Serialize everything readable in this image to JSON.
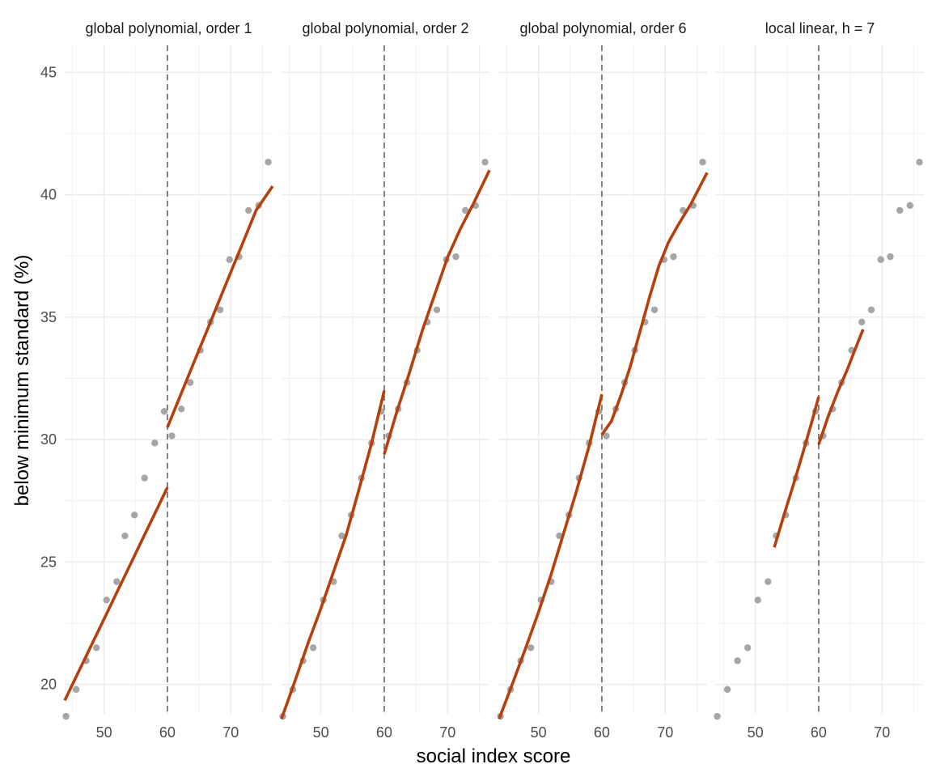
{
  "chart_data": {
    "type": "scatter",
    "ylabel": "below minimum standard (%)",
    "xlabel": "social index score",
    "xlim": [
      43.8,
      76.6
    ],
    "ylim": [
      18.8,
      46.1
    ],
    "x_ticks": [
      50,
      60,
      70
    ],
    "y_ticks": [
      20,
      25,
      30,
      35,
      40,
      45
    ],
    "cutoff": 60,
    "grid": true,
    "colors": {
      "points": "#a6a6a6",
      "fit": "#b5400d",
      "cutoff_line": "#666666",
      "grid": "#ebebeb"
    },
    "points": [
      {
        "x": 44.0,
        "y": 18.7
      },
      {
        "x": 45.6,
        "y": 19.8
      },
      {
        "x": 47.2,
        "y": 20.97
      },
      {
        "x": 48.8,
        "y": 21.5
      },
      {
        "x": 50.4,
        "y": 23.45
      },
      {
        "x": 52.0,
        "y": 24.2
      },
      {
        "x": 53.3,
        "y": 26.07
      },
      {
        "x": 54.8,
        "y": 26.92
      },
      {
        "x": 56.4,
        "y": 28.43
      },
      {
        "x": 58.0,
        "y": 29.86
      },
      {
        "x": 59.5,
        "y": 31.15
      },
      {
        "x": 60.7,
        "y": 30.15
      },
      {
        "x": 62.2,
        "y": 31.25
      },
      {
        "x": 63.6,
        "y": 32.33
      },
      {
        "x": 65.2,
        "y": 33.65
      },
      {
        "x": 66.8,
        "y": 34.8
      },
      {
        "x": 68.3,
        "y": 35.3
      },
      {
        "x": 69.8,
        "y": 37.35
      },
      {
        "x": 71.3,
        "y": 37.47
      },
      {
        "x": 72.8,
        "y": 39.36
      },
      {
        "x": 74.4,
        "y": 39.56
      },
      {
        "x": 75.9,
        "y": 41.33
      }
    ],
    "panels": [
      {
        "title": "global polynomial, order 1",
        "fits": [
          {
            "x": [
              43.8,
              46.0,
              48.0,
              50.0,
              52.0,
              54.0,
              56.0,
              58.0,
              60.0
            ],
            "y": [
              19.35,
              20.53,
              21.6,
              22.67,
              23.75,
              24.82,
              25.9,
              26.97,
              28.05
            ]
          },
          {
            "x": [
              60.0,
              62.0,
              64.0,
              66.0,
              68.0,
              70.0,
              72.0,
              74.0,
              76.6
            ],
            "y": [
              30.5,
              31.77,
              33.04,
              34.3,
              35.57,
              36.84,
              38.1,
              39.37,
              40.35
            ]
          }
        ]
      },
      {
        "title": "global polynomial, order 2",
        "fits": [
          {
            "x": [
              43.8,
              46.0,
              48.0,
              50.0,
              52.0,
              54.0,
              56.0,
              58.0,
              60.0
            ],
            "y": [
              18.6,
              20.2,
              21.7,
              23.1,
              24.6,
              26.1,
              27.95,
              29.85,
              32.0
            ]
          },
          {
            "x": [
              60.0,
              62.0,
              64.0,
              66.0,
              68.0,
              70.0,
              72.0,
              74.0,
              76.6
            ],
            "y": [
              29.4,
              31.15,
              32.75,
              34.45,
              35.95,
              37.45,
              38.6,
              39.6,
              41.0
            ]
          }
        ]
      },
      {
        "title": "global polynomial, order 6",
        "fits": [
          {
            "x": [
              43.8,
              46.0,
              48.0,
              50.0,
              52.0,
              54.0,
              56.0,
              58.0,
              60.0
            ],
            "y": [
              18.6,
              20.1,
              21.5,
              22.95,
              24.5,
              26.2,
              27.9,
              29.75,
              31.85
            ]
          },
          {
            "x": [
              60.0,
              61.5,
              63.0,
              64.5,
              66.0,
              67.5,
              69.0,
              70.5,
              72.0,
              74.0,
              76.6
            ],
            "y": [
              30.2,
              30.75,
              31.8,
              33.0,
              34.4,
              35.8,
              37.1,
              38.05,
              38.75,
              39.6,
              40.9
            ]
          }
        ]
      },
      {
        "title": "local linear, h = 7",
        "fits": [
          {
            "x": [
              53.0,
              54.5,
              56.0,
              57.5,
              59.0,
              60.0
            ],
            "y": [
              25.6,
              26.9,
              28.15,
              29.45,
              30.8,
              31.75
            ]
          },
          {
            "x": [
              60.0,
              61.5,
              63.0,
              64.5,
              66.0,
              67.0
            ],
            "y": [
              29.8,
              30.95,
              31.95,
              32.85,
              33.85,
              34.5
            ]
          }
        ]
      }
    ]
  }
}
